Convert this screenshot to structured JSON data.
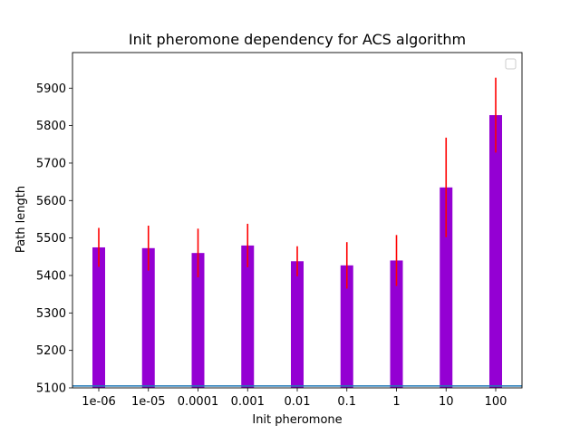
{
  "chart_data": {
    "type": "bar",
    "title": "Init pheromone dependency for ACS algorithm",
    "xlabel": "Init pheromone",
    "ylabel": "Path length",
    "categories": [
      "1e-06",
      "1e-05",
      "0.0001",
      "0.001",
      "0.01",
      "0.1",
      "1",
      "10",
      "100"
    ],
    "values": [
      5475,
      5473,
      5460,
      5480,
      5438,
      5427,
      5440,
      5635,
      5828
    ],
    "errors": [
      52,
      60,
      65,
      58,
      40,
      62,
      68,
      133,
      100
    ],
    "ylim": [
      5100,
      5995
    ],
    "yticks": [
      5100,
      5200,
      5300,
      5400,
      5500,
      5600,
      5700,
      5800,
      5900
    ],
    "yticklabels": [
      "5100",
      "5200",
      "5300",
      "5400",
      "5500",
      "5600",
      "5700",
      "5800",
      "5900"
    ],
    "reference_line": 5105,
    "legend_position": "upper right",
    "colors": {
      "bar": "#9400d3",
      "error": "#ff0000",
      "reference": "#1f77b4",
      "axis": "#000000",
      "legend_border": "#cccccc"
    }
  }
}
